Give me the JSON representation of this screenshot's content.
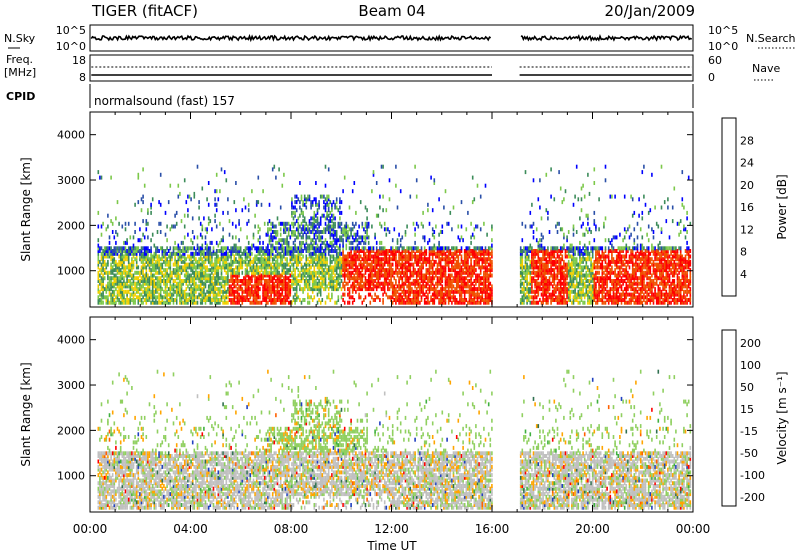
{
  "header": {
    "radar": "TIGER (fitACF)",
    "beam": "Beam 04",
    "date": "20/Jan/2009",
    "cpid_label": "CPID",
    "cpid_value": "normalsound (fast) 157"
  },
  "strips": {
    "nsky": {
      "left_label": "N.Sky",
      "ticks": [
        "10^5",
        "10^0"
      ],
      "right_label": "N.Search",
      "right_ticks": [
        "10^5",
        "10^0"
      ]
    },
    "freq": {
      "left_label_1": "Freq.",
      "left_label_2": "[MHz]",
      "ticks": [
        "18",
        "8"
      ],
      "right_label": "Nave",
      "right_ticks": [
        "60",
        "0"
      ]
    }
  },
  "colors": {
    "power_scale": [
      "#0000ff",
      "#2a4fa8",
      "#3c8c5a",
      "#7cc84a",
      "#f0d000",
      "#f09000",
      "#f05000",
      "#ff0000"
    ],
    "velocity_scale": [
      "#2040c0",
      "#307050",
      "#40b040",
      "#90d060",
      "#c0c0c0",
      "#ffa500",
      "#ff6000",
      "#ff0000"
    ],
    "ground_scatter": "#c0c0c0"
  },
  "chart_data": [
    {
      "type": "heatmap",
      "name": "power",
      "ylabel": "Slant Range [km]",
      "yticks": [
        "1000",
        "2000",
        "3000",
        "4000"
      ],
      "yrange": [
        200,
        4500
      ],
      "colorbar_label": "Power [dB]",
      "colorbar_ticks": [
        "4",
        "8",
        "12",
        "16",
        "20",
        "24",
        "28"
      ],
      "colorbar_range": [
        0,
        32
      ]
    },
    {
      "type": "heatmap",
      "name": "velocity",
      "ylabel": "Slant Range [km]",
      "yticks": [
        "1000",
        "2000",
        "3000",
        "4000"
      ],
      "yrange": [
        200,
        4500
      ],
      "colorbar_label": "Velocity [m s⁻¹]",
      "colorbar_ticks": [
        "200",
        "100",
        "50",
        "15",
        "-15",
        "-50",
        "-100",
        "-200"
      ]
    }
  ],
  "xaxis": {
    "label": "Time UT",
    "ticks": [
      "00:00",
      "04:00",
      "08:00",
      "12:00",
      "16:00",
      "20:00",
      "00:00"
    ],
    "range_hours": [
      0,
      24
    ],
    "data_gap_hours": [
      16.0,
      17.1
    ]
  }
}
